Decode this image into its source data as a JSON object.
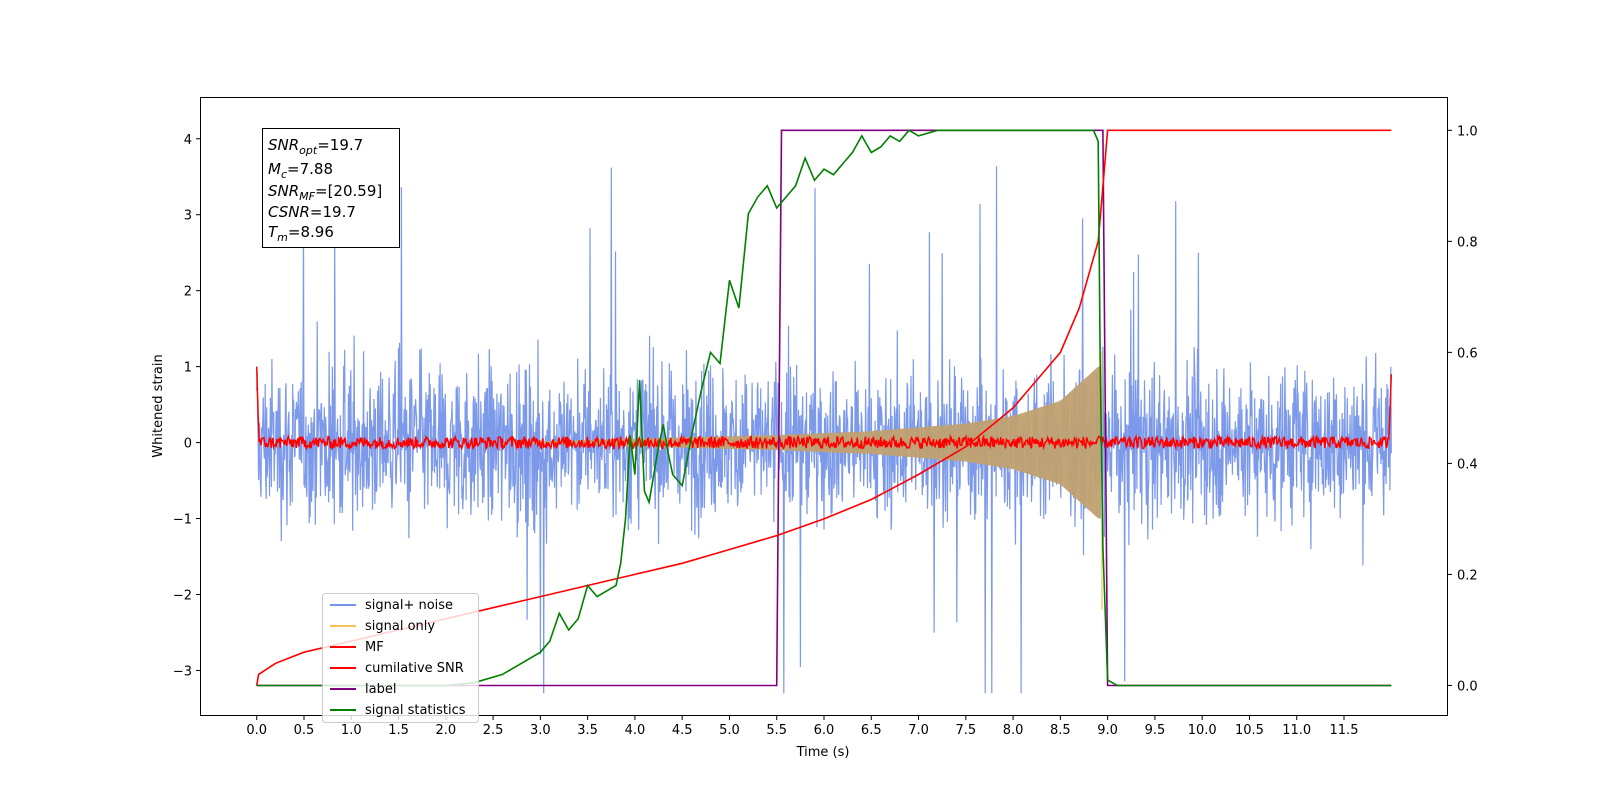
{
  "chart_data": {
    "type": "line",
    "xlabel": "Time (s)",
    "ylabel": "Whitened strain",
    "xlim": [
      -0.6,
      12.6
    ],
    "ylim": [
      -3.6,
      4.55
    ],
    "y2lim": [
      -0.055,
      1.06
    ],
    "x_ticks": [
      0.0,
      0.5,
      1.0,
      1.5,
      2.0,
      2.5,
      3.0,
      3.5,
      4.0,
      4.5,
      5.0,
      5.5,
      6.0,
      6.5,
      7.0,
      7.5,
      8.0,
      8.5,
      9.0,
      9.5,
      10.0,
      10.5,
      11.0,
      11.5
    ],
    "x_tick_labels": [
      "0.0",
      "0.5",
      "1.0",
      "1.5",
      "2.0",
      "2.5",
      "3.0",
      "3.5",
      "4.0",
      "4.5",
      "5.0",
      "5.5",
      "6.0",
      "6.5",
      "7.0",
      "7.5",
      "8.0",
      "8.5",
      "9.0",
      "9.5",
      "10.0",
      "10.5",
      "11.0",
      "11.5"
    ],
    "y_ticks": [
      -3,
      -2,
      -1,
      0,
      1,
      2,
      3,
      4
    ],
    "y_tick_labels": [
      "−3",
      "−2",
      "−1",
      "0",
      "1",
      "2",
      "3",
      "4"
    ],
    "y2_ticks": [
      0.0,
      0.2,
      0.4,
      0.6,
      0.8,
      1.0
    ],
    "y2_tick_labels": [
      "0.0",
      "0.2",
      "0.4",
      "0.6",
      "0.8",
      "1.0"
    ],
    "grid": false,
    "legend_position": "lower-left",
    "info_box": {
      "snr_opt": {
        "base": "SNR",
        "sub": "opt",
        "value": "=19.7"
      },
      "mc": {
        "base": "M",
        "sub": "c",
        "value": "=7.88"
      },
      "snr_mf": {
        "base": "SNR",
        "sub": "MF",
        "value": "=[20.59]"
      },
      "csnr": {
        "base": "CSNR",
        "sub": "",
        "value": "=19.7"
      },
      "tm": {
        "base": "T",
        "sub": "m",
        "value": "=8.96"
      }
    },
    "series": [
      {
        "name": "signal+ noise",
        "color": "#7594e9",
        "axis": "left",
        "note": "noise band approx. ±1.5, peaks to about 4.2 and -3.3, spanning 0.0 to 12.0 s"
      },
      {
        "name": "signal only",
        "color": "#f8c15a",
        "axis": "left",
        "merger_time": 8.96,
        "envelope": [
          [
            5.5,
            0.1
          ],
          [
            6.5,
            0.15
          ],
          [
            7.5,
            0.25
          ],
          [
            8.0,
            0.35
          ],
          [
            8.5,
            0.55
          ],
          [
            8.9,
            1.0
          ]
        ]
      },
      {
        "name": "MF",
        "color": "#ff0000",
        "axis": "left",
        "note": "near 0 with small fluctuations; spike about 1.0 at t=0 and 0.9 at t=12"
      },
      {
        "name": "cumilative SNR",
        "color": "#ff0000",
        "axis": "right",
        "x": [
          0.0,
          0.02,
          0.2,
          0.5,
          1.0,
          1.5,
          2.0,
          2.5,
          3.0,
          3.5,
          4.0,
          4.5,
          5.0,
          5.5,
          6.0,
          6.5,
          7.0,
          7.5,
          8.0,
          8.3,
          8.5,
          8.7,
          8.9,
          8.96,
          9.0,
          12.0
        ],
        "y": [
          0.0,
          0.02,
          0.04,
          0.06,
          0.08,
          0.1,
          0.12,
          0.14,
          0.16,
          0.18,
          0.2,
          0.22,
          0.245,
          0.27,
          0.3,
          0.335,
          0.38,
          0.43,
          0.5,
          0.56,
          0.6,
          0.68,
          0.8,
          0.92,
          1.0,
          1.0
        ]
      },
      {
        "name": "label",
        "color": "#800080",
        "axis": "right",
        "x": [
          0.0,
          5.5,
          5.55,
          8.95,
          9.0,
          12.0
        ],
        "y": [
          0.0,
          0.0,
          1.0,
          1.0,
          0.0,
          0.0
        ]
      },
      {
        "name": "signal statistics",
        "color": "#008000",
        "axis": "right",
        "x": [
          0.0,
          0.5,
          1.0,
          1.5,
          2.0,
          2.3,
          2.6,
          2.8,
          3.0,
          3.1,
          3.2,
          3.3,
          3.4,
          3.5,
          3.6,
          3.7,
          3.8,
          3.85,
          3.9,
          3.95,
          4.0,
          4.05,
          4.1,
          4.15,
          4.2,
          4.25,
          4.3,
          4.35,
          4.4,
          4.5,
          4.6,
          4.7,
          4.8,
          4.9,
          5.0,
          5.1,
          5.2,
          5.3,
          5.4,
          5.5,
          5.6,
          5.7,
          5.8,
          5.9,
          6.0,
          6.1,
          6.2,
          6.3,
          6.4,
          6.5,
          6.6,
          6.7,
          6.8,
          6.9,
          7.0,
          7.2,
          7.5,
          7.8,
          8.0,
          8.5,
          8.8,
          8.85,
          8.9,
          8.92,
          8.95,
          9.0,
          9.1,
          9.5,
          10.0,
          11.0,
          12.0
        ],
        "y": [
          0.0,
          0.0,
          0.0,
          0.0,
          0.0,
          0.005,
          0.02,
          0.04,
          0.06,
          0.08,
          0.13,
          0.1,
          0.12,
          0.18,
          0.16,
          0.17,
          0.18,
          0.22,
          0.3,
          0.45,
          0.38,
          0.55,
          0.35,
          0.33,
          0.38,
          0.43,
          0.47,
          0.42,
          0.38,
          0.36,
          0.45,
          0.53,
          0.6,
          0.58,
          0.73,
          0.68,
          0.85,
          0.88,
          0.9,
          0.86,
          0.88,
          0.9,
          0.95,
          0.91,
          0.93,
          0.92,
          0.94,
          0.96,
          0.99,
          0.96,
          0.97,
          0.99,
          0.98,
          1.0,
          0.99,
          1.0,
          1.0,
          1.0,
          1.0,
          1.0,
          1.0,
          1.0,
          0.98,
          0.6,
          0.25,
          0.01,
          0.0,
          0.0,
          0.0,
          0.0,
          0.0
        ]
      }
    ]
  }
}
